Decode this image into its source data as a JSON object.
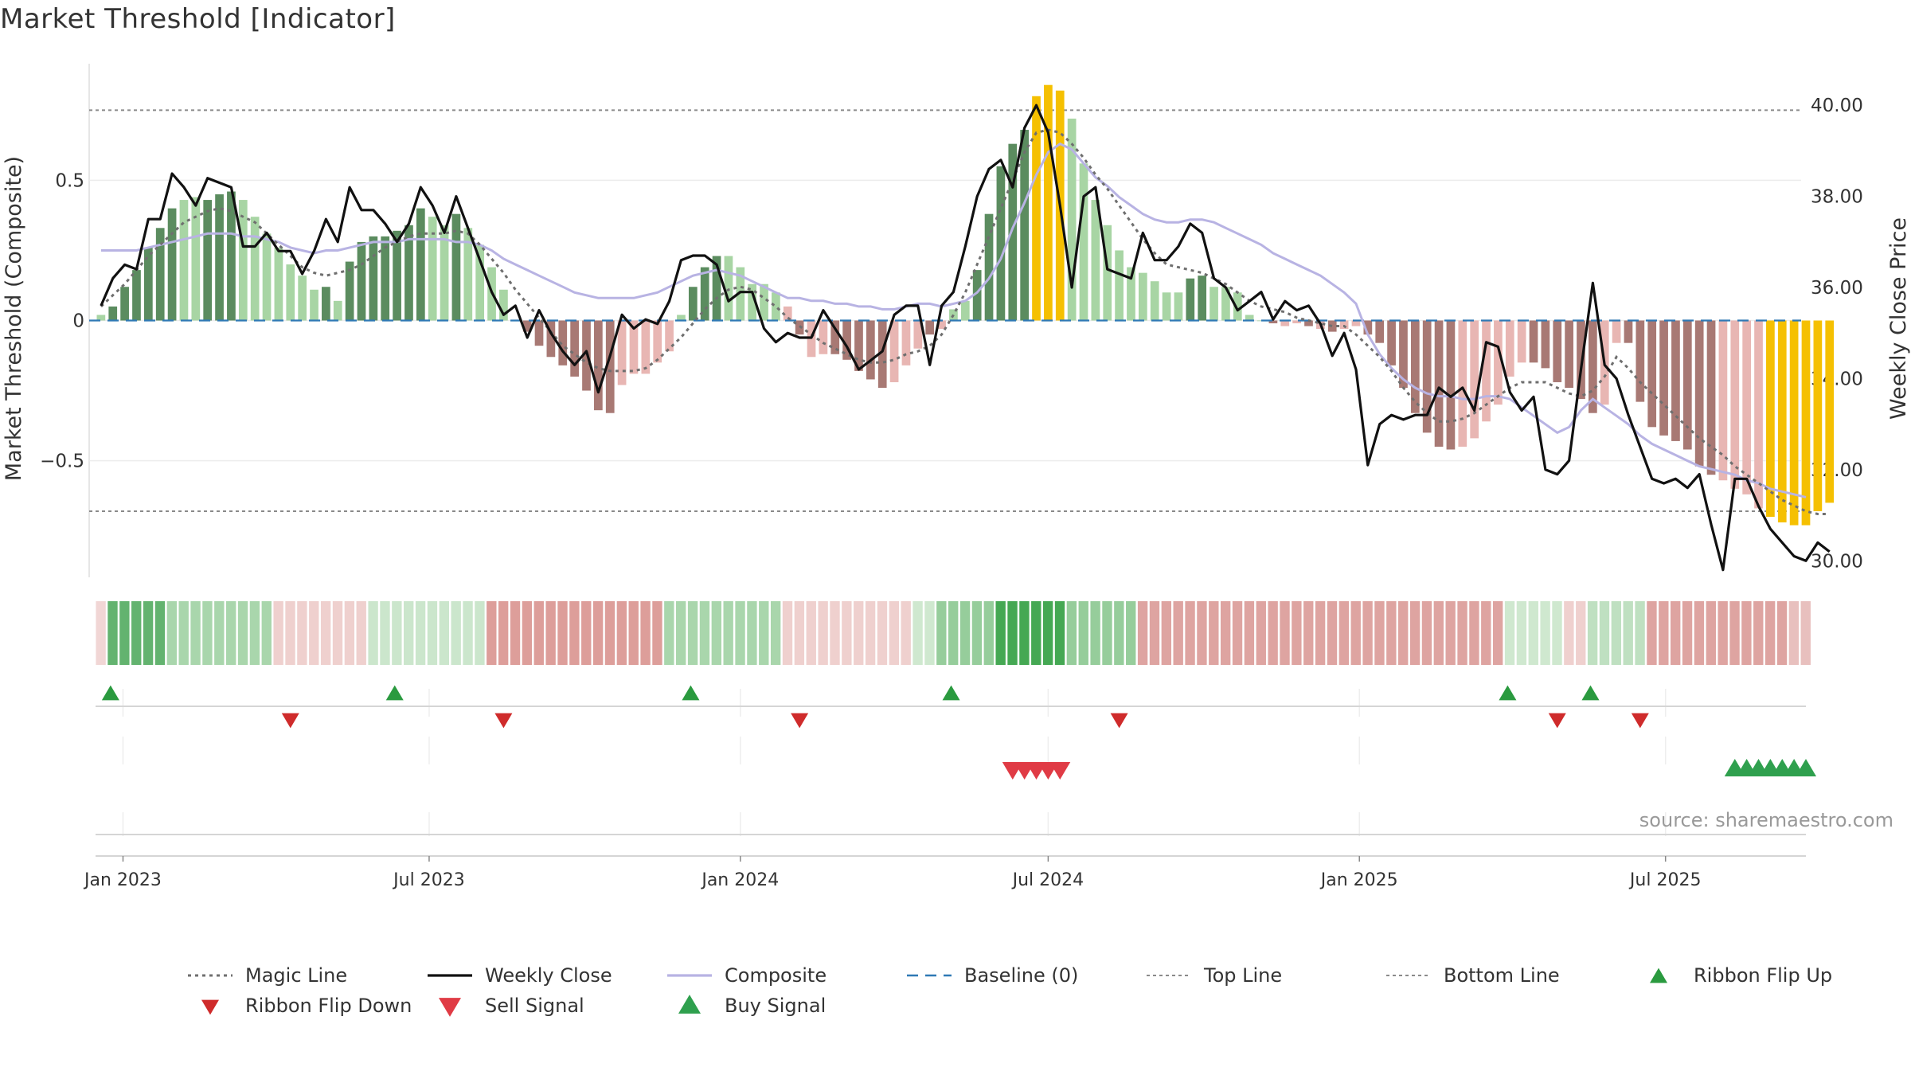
{
  "chart_data": {
    "type": "bar",
    "title": "Market Threshold [Indicator]",
    "ylabel_left": "Market Threshold (Composite)",
    "ylabel_right": "Weekly Close Price",
    "source": "source: sharemaestro.com",
    "yticks_left": [
      {
        "v": 0.5,
        "label": "0.5"
      },
      {
        "v": 0,
        "label": "0"
      },
      {
        "v": -0.5,
        "label": "−0.5"
      }
    ],
    "yticks_right": [
      "30.00",
      "32.00",
      "34.00",
      "36.00",
      "38.00",
      "40.00"
    ],
    "ylim_left": [
      -0.93,
      0.93
    ],
    "ylim_right": [
      29.55,
      41.0
    ],
    "x_axis": {
      "start": "2022-12-12",
      "end": "2025-09-22"
    },
    "xticks": [
      {
        "date": "2023-01-01",
        "label": "Jan 2023"
      },
      {
        "date": "2023-07-01",
        "label": "Jul 2023"
      },
      {
        "date": "2024-01-01",
        "label": "Jan 2024"
      },
      {
        "date": "2024-07-01",
        "label": "Jul 2024"
      },
      {
        "date": "2025-01-01",
        "label": "Jan 2025"
      },
      {
        "date": "2025-07-01",
        "label": "Jul 2025"
      }
    ],
    "top_line": 0.75,
    "bottom_line": -0.68,
    "start_date": "2022-12-19",
    "composite_bars": [
      0.02,
      0.05,
      0.12,
      0.18,
      0.26,
      0.33,
      0.4,
      0.43,
      0.44,
      0.43,
      0.45,
      0.46,
      0.43,
      0.37,
      0.31,
      0.26,
      0.2,
      0.16,
      0.11,
      0.12,
      0.07,
      0.21,
      0.28,
      0.3,
      0.3,
      0.32,
      0.34,
      0.4,
      0.37,
      0.34,
      0.38,
      0.33,
      0.27,
      0.19,
      0.11,
      0.0,
      -0.04,
      -0.09,
      -0.13,
      -0.16,
      -0.2,
      -0.25,
      -0.32,
      -0.33,
      -0.23,
      -0.19,
      -0.19,
      -0.15,
      -0.11,
      0.02,
      0.12,
      0.19,
      0.23,
      0.23,
      0.19,
      0.13,
      0.13,
      0.1,
      0.05,
      -0.05,
      -0.13,
      -0.12,
      -0.12,
      -0.14,
      -0.18,
      -0.21,
      -0.24,
      -0.22,
      -0.16,
      -0.1,
      -0.05,
      -0.03,
      0.04,
      0.07,
      0.18,
      0.38,
      0.55,
      0.63,
      0.68,
      0.8,
      0.84,
      0.82,
      0.72,
      0.56,
      0.43,
      0.34,
      0.25,
      0.19,
      0.17,
      0.14,
      0.1,
      0.1,
      0.15,
      0.16,
      0.12,
      0.12,
      0.1,
      0.02,
      0.0,
      -0.01,
      -0.02,
      -0.01,
      -0.02,
      -0.03,
      -0.04,
      -0.03,
      -0.02,
      -0.05,
      -0.08,
      -0.16,
      -0.24,
      -0.33,
      -0.4,
      -0.45,
      -0.46,
      -0.45,
      -0.42,
      -0.36,
      -0.3,
      -0.2,
      -0.15,
      -0.15,
      -0.17,
      -0.22,
      -0.24,
      -0.28,
      -0.33,
      -0.3,
      -0.08,
      -0.08,
      -0.29,
      -0.38,
      -0.41,
      -0.43,
      -0.46,
      -0.52,
      -0.55,
      -0.57,
      -0.6,
      -0.62,
      -0.67,
      -0.7,
      -0.72,
      -0.73,
      -0.73,
      -0.68,
      -0.65
    ],
    "bar_state": [
      "lg",
      "dg",
      "dg",
      "dg",
      "dg",
      "dg",
      "dg",
      "lg",
      "lg",
      "dg",
      "dg",
      "dg",
      "lg",
      "lg",
      "lg",
      "lg",
      "lg",
      "lg",
      "lg",
      "dg",
      "lg",
      "dg",
      "dg",
      "dg",
      "dg",
      "dg",
      "dg",
      "dg",
      "lg",
      "lg",
      "dg",
      "lg",
      "lg",
      "lg",
      "lg",
      "lg",
      "dr",
      "dr",
      "dr",
      "dr",
      "dr",
      "dr",
      "dr",
      "dr",
      "lr",
      "lr",
      "lr",
      "lr",
      "lr",
      "lg",
      "dg",
      "dg",
      "dg",
      "lg",
      "lg",
      "lg",
      "lg",
      "lg",
      "lr",
      "dr",
      "lr",
      "lr",
      "dr",
      "dr",
      "dr",
      "dr",
      "dr",
      "lr",
      "lr",
      "lr",
      "dr",
      "lr",
      "lg",
      "lg",
      "dg",
      "dg",
      "dg",
      "dg",
      "dg",
      "y",
      "y",
      "y",
      "lg",
      "lg",
      "lg",
      "lg",
      "lg",
      "lg",
      "lg",
      "lg",
      "lg",
      "lg",
      "dg",
      "dg",
      "lg",
      "lg",
      "lg",
      "lg",
      "lg",
      "dr",
      "lr",
      "lr",
      "dr",
      "lr",
      "dr",
      "lr",
      "lr",
      "dr",
      "dr",
      "dr",
      "dr",
      "dr",
      "dr",
      "dr",
      "dr",
      "lr",
      "lr",
      "lr",
      "lr",
      "lr",
      "lr",
      "dr",
      "dr",
      "dr",
      "dr",
      "dr",
      "dr",
      "lr",
      "lr",
      "dr",
      "dr",
      "dr",
      "dr",
      "dr",
      "dr",
      "dr",
      "dr",
      "lr",
      "lr",
      "lr",
      "lr",
      "y",
      "y",
      "y",
      "y",
      "y",
      "y"
    ],
    "weekly_close": [
      35.6,
      36.2,
      36.5,
      36.4,
      37.5,
      37.5,
      38.5,
      38.2,
      37.8,
      38.4,
      38.3,
      38.2,
      36.9,
      36.9,
      37.2,
      36.8,
      36.8,
      36.3,
      36.8,
      37.5,
      37.0,
      38.2,
      37.7,
      37.7,
      37.4,
      37.0,
      37.4,
      38.2,
      37.8,
      37.2,
      38.0,
      37.3,
      36.6,
      35.9,
      35.4,
      35.6,
      34.9,
      35.5,
      35.0,
      34.6,
      34.3,
      34.6,
      33.7,
      34.5,
      35.4,
      35.1,
      35.3,
      35.2,
      35.7,
      36.6,
      36.7,
      36.7,
      36.5,
      35.7,
      35.9,
      35.9,
      35.1,
      34.8,
      35.0,
      34.9,
      34.9,
      35.5,
      35.1,
      34.7,
      34.2,
      34.4,
      34.6,
      35.4,
      35.6,
      35.6,
      34.3,
      35.6,
      35.9,
      36.9,
      38.0,
      38.6,
      38.8,
      38.2,
      39.5,
      40.0,
      39.4,
      37.8,
      36.0,
      38.0,
      38.2,
      36.4,
      36.3,
      36.2,
      37.2,
      36.6,
      36.6,
      36.9,
      37.4,
      37.2,
      36.2,
      36.0,
      35.5,
      35.7,
      35.9,
      35.3,
      35.7,
      35.5,
      35.6,
      35.2,
      34.5,
      35.0,
      34.2,
      32.1,
      33.0,
      33.2,
      33.1,
      33.2,
      33.2,
      33.8,
      33.6,
      33.8,
      33.3,
      34.8,
      34.7,
      33.7,
      33.3,
      33.6,
      32.0,
      31.9,
      32.2,
      34.2,
      36.1,
      34.3,
      34.0,
      33.2,
      32.5,
      31.8,
      31.7,
      31.8,
      31.6,
      31.9,
      30.8,
      29.8,
      31.8,
      31.8,
      31.2,
      30.7,
      30.4,
      30.1,
      30.0,
      30.4,
      30.2
    ],
    "magic_line": [
      0.05,
      0.09,
      0.13,
      0.18,
      0.23,
      0.27,
      0.31,
      0.35,
      0.37,
      0.39,
      0.4,
      0.39,
      0.37,
      0.35,
      0.31,
      0.27,
      0.23,
      0.19,
      0.17,
      0.16,
      0.17,
      0.18,
      0.2,
      0.23,
      0.26,
      0.28,
      0.3,
      0.31,
      0.31,
      0.31,
      0.32,
      0.31,
      0.27,
      0.22,
      0.17,
      0.11,
      0.06,
      0.01,
      -0.04,
      -0.09,
      -0.12,
      -0.15,
      -0.17,
      -0.18,
      -0.18,
      -0.18,
      -0.17,
      -0.14,
      -0.1,
      -0.06,
      -0.01,
      0.04,
      0.08,
      0.11,
      0.12,
      0.11,
      0.08,
      0.05,
      0.01,
      -0.02,
      -0.05,
      -0.08,
      -0.1,
      -0.12,
      -0.14,
      -0.15,
      -0.15,
      -0.14,
      -0.12,
      -0.11,
      -0.09,
      -0.05,
      0.02,
      0.1,
      0.2,
      0.3,
      0.4,
      0.5,
      0.6,
      0.67,
      0.68,
      0.67,
      0.63,
      0.58,
      0.52,
      0.47,
      0.41,
      0.35,
      0.29,
      0.24,
      0.2,
      0.19,
      0.18,
      0.17,
      0.15,
      0.13,
      0.1,
      0.07,
      0.05,
      0.04,
      0.03,
      0.01,
      0.0,
      -0.01,
      -0.02,
      -0.02,
      -0.05,
      -0.09,
      -0.13,
      -0.18,
      -0.24,
      -0.29,
      -0.33,
      -0.36,
      -0.36,
      -0.35,
      -0.33,
      -0.3,
      -0.27,
      -0.24,
      -0.22,
      -0.22,
      -0.22,
      -0.24,
      -0.26,
      -0.27,
      -0.25,
      -0.2,
      -0.13,
      -0.17,
      -0.22,
      -0.26,
      -0.3,
      -0.34,
      -0.38,
      -0.42,
      -0.45,
      -0.48,
      -0.52,
      -0.55,
      -0.58,
      -0.61,
      -0.64,
      -0.66,
      -0.68,
      -0.69,
      -0.69
    ],
    "composite_line": [
      0.25,
      0.25,
      0.25,
      0.25,
      0.26,
      0.27,
      0.28,
      0.29,
      0.3,
      0.31,
      0.31,
      0.31,
      0.3,
      0.3,
      0.29,
      0.28,
      0.26,
      0.25,
      0.24,
      0.25,
      0.25,
      0.26,
      0.27,
      0.28,
      0.28,
      0.28,
      0.29,
      0.29,
      0.29,
      0.29,
      0.28,
      0.28,
      0.27,
      0.25,
      0.22,
      0.2,
      0.18,
      0.16,
      0.14,
      0.12,
      0.1,
      0.09,
      0.08,
      0.08,
      0.08,
      0.08,
      0.09,
      0.1,
      0.12,
      0.14,
      0.16,
      0.17,
      0.18,
      0.17,
      0.16,
      0.14,
      0.12,
      0.1,
      0.08,
      0.08,
      0.07,
      0.07,
      0.06,
      0.06,
      0.05,
      0.05,
      0.04,
      0.04,
      0.05,
      0.06,
      0.06,
      0.05,
      0.06,
      0.07,
      0.1,
      0.15,
      0.22,
      0.33,
      0.42,
      0.52,
      0.6,
      0.63,
      0.61,
      0.56,
      0.51,
      0.48,
      0.44,
      0.41,
      0.38,
      0.36,
      0.35,
      0.35,
      0.36,
      0.36,
      0.35,
      0.33,
      0.31,
      0.29,
      0.27,
      0.24,
      0.22,
      0.2,
      0.18,
      0.16,
      0.13,
      0.1,
      0.06,
      -0.05,
      -0.12,
      -0.17,
      -0.21,
      -0.24,
      -0.26,
      -0.27,
      -0.27,
      -0.28,
      -0.28,
      -0.27,
      -0.27,
      -0.28,
      -0.31,
      -0.34,
      -0.37,
      -0.4,
      -0.38,
      -0.32,
      -0.28,
      -0.31,
      -0.34,
      -0.37,
      -0.41,
      -0.44,
      -0.46,
      -0.48,
      -0.5,
      -0.52,
      -0.53,
      -0.54,
      -0.55,
      -0.57,
      -0.58,
      -0.6,
      -0.61,
      -0.62,
      -0.63
    ],
    "ribbon": [
      {
        "n": 1,
        "c": "#f1d6d5"
      },
      {
        "n": 5,
        "c": "#63b36f"
      },
      {
        "n": 9,
        "c": "#a9d6ac"
      },
      {
        "n": 8,
        "c": "#efd0ce"
      },
      {
        "n": 10,
        "c": "#cbe6cc"
      },
      {
        "n": 15,
        "c": "#dd9e9a"
      },
      {
        "n": 10,
        "c": "#a9d6ac"
      },
      {
        "n": 11,
        "c": "#efd0ce"
      },
      {
        "n": 2,
        "c": "#cfe8cf"
      },
      {
        "n": 5,
        "c": "#96cd9b"
      },
      {
        "n": 6,
        "c": "#45a853"
      },
      {
        "n": 6,
        "c": "#96cd9b"
      },
      {
        "n": 31,
        "c": "#dea4a1"
      },
      {
        "n": 5,
        "c": "#cfe8cf"
      },
      {
        "n": 2,
        "c": "#efd0ce"
      },
      {
        "n": 5,
        "c": "#bfe0c1"
      },
      {
        "n": 12,
        "c": "#dea4a1"
      },
      {
        "n": 2,
        "c": "#e8c0be"
      }
    ],
    "ribbon_flip_up": [
      0,
      24,
      49,
      71,
      118,
      125
    ],
    "ribbon_flip_down": [
      16,
      34,
      59,
      86,
      123,
      130
    ],
    "sell_signal": [
      77,
      78,
      79,
      80,
      81
    ],
    "buy_signal": [
      138,
      139,
      140,
      141,
      142,
      143,
      144
    ],
    "colors": {
      "dark_green": "#5b8c5f",
      "light_green": "#a8d5a4",
      "dark_red": "#a87974",
      "light_red": "#e8b6b3",
      "yellow": "#f5c001",
      "magic": "#6f6f6f",
      "close": "#111111",
      "composite": "#b8b3e3",
      "baseline": "#2f79b5",
      "threshold": "#8a8a8a",
      "flip_up": "#2a9a3f",
      "flip_down": "#cf2b2b",
      "sell": "#e03b45",
      "buy": "#2fa04e"
    },
    "legend": [
      {
        "label": "Magic Line",
        "icon": "dotted-line"
      },
      {
        "label": "Weekly Close",
        "icon": "solid-line"
      },
      {
        "label": "Composite",
        "icon": "lavender-line"
      },
      {
        "label": "Baseline (0)",
        "icon": "dashed-blue-line"
      },
      {
        "label": "Top Line",
        "icon": "dotted-gray-line"
      },
      {
        "label": "Bottom Line",
        "icon": "dotted-gray-line"
      },
      {
        "label": "Ribbon Flip Up",
        "icon": "triangle-up-green"
      },
      {
        "label": "Ribbon Flip Down",
        "icon": "triangle-down-red"
      },
      {
        "label": "Sell Signal",
        "icon": "triangle-down-red-large"
      },
      {
        "label": "Buy Signal",
        "icon": "triangle-up-green-large"
      }
    ]
  }
}
